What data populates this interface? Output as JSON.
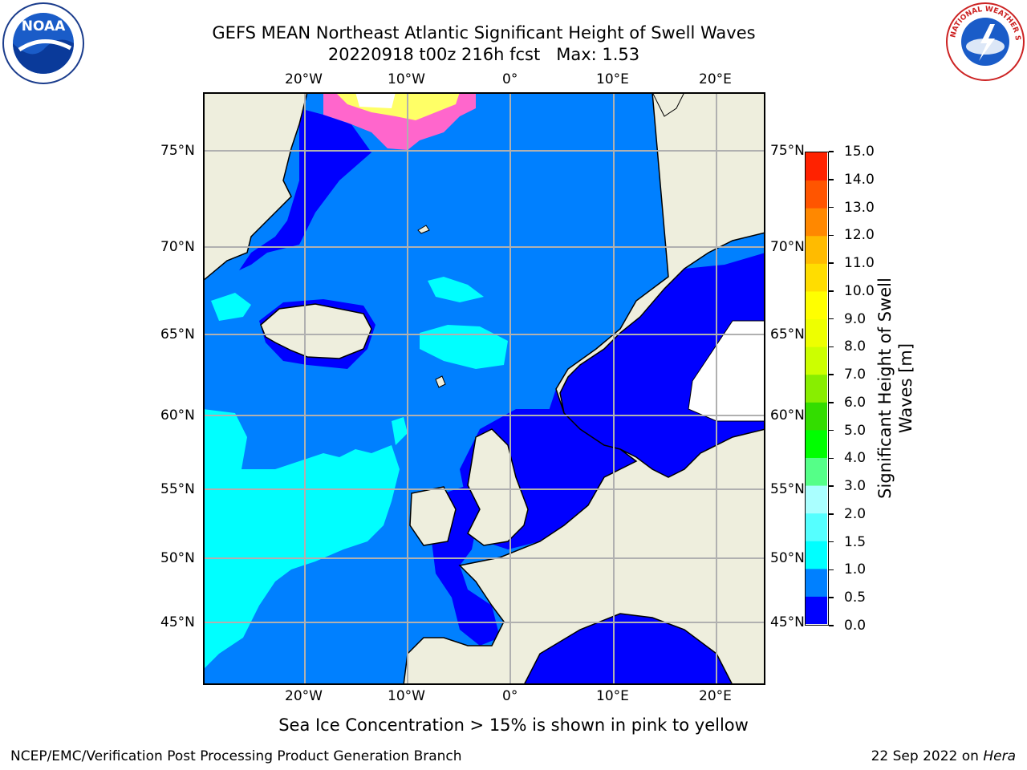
{
  "header": {
    "title_line1": "GEFS MEAN Northeast Atlantic Significant Height of Swell Waves",
    "title_line2": "20220918 t00z 216h fcst   Max: 1.53"
  },
  "logos": {
    "left": {
      "name": "noara-logo",
      "text": "NOAA"
    },
    "right": {
      "name": "nws-logo",
      "text": "NATIONAL WEATHER SERVICE"
    }
  },
  "map": {
    "lon_labels_top": [
      "20°W",
      "10°W",
      "0°",
      "10°E",
      "20°E"
    ],
    "lon_labels_bottom": [
      "20°W",
      "10°W",
      "0°",
      "10°E",
      "20°E"
    ],
    "lat_labels_left": [
      "75°N",
      "70°N",
      "65°N",
      "60°N",
      "55°N",
      "50°N",
      "45°N"
    ],
    "lat_labels_right": [
      "75°N",
      "70°N",
      "65°N",
      "60°N",
      "55°N",
      "50°N",
      "45°N"
    ],
    "colors": {
      "ocean_0_0_5": "#0000ff",
      "ocean_0_5_1": "#0080ff",
      "ocean_1_1_5": "#00ffff",
      "ocean_1_5_2": "#80ffff",
      "land": "#eeeedd",
      "sea_ice_pink": "#ff66cc",
      "sea_ice_yellow": "#ffff66"
    }
  },
  "colorbar": {
    "label": "Significant Height of Swell Waves [m]",
    "ticks": [
      "15.0",
      "14.0",
      "13.0",
      "12.0",
      "11.0",
      "10.0",
      "9.0",
      "8.0",
      "7.0",
      "6.0",
      "5.0",
      "4.0",
      "3.0",
      "2.0",
      "1.5",
      "1.0",
      "0.5",
      "0.0"
    ],
    "colors_bottom_to_top": [
      "#0000ff",
      "#0080ff",
      "#00ffff",
      "#55ffff",
      "#aaffff",
      "#55ff88",
      "#00ff00",
      "#33dd00",
      "#88ee00",
      "#ccff00",
      "#eeff00",
      "#ffff00",
      "#ffdd00",
      "#ffbb00",
      "#ff8800",
      "#ff5500",
      "#ff2200"
    ]
  },
  "caption": "Sea Ice Concentration > 15% is shown in pink to yellow",
  "footer": {
    "left": "NCEP/EMC/Verification Post Processing Product Generation Branch",
    "right_date": "22 Sep 2022 on ",
    "right_host": "Hera"
  }
}
